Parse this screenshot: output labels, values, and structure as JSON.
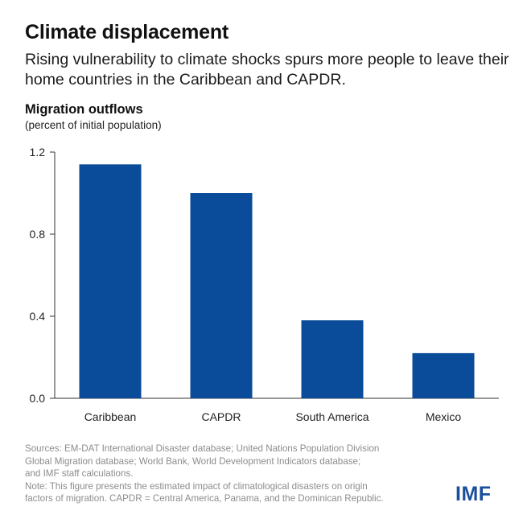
{
  "header": {
    "title": "Climate displacement",
    "subtitle": "Rising vulnerability to climate shocks spurs more people to leave their home countries in the Caribbean and CAPDR."
  },
  "chart_data": {
    "type": "bar",
    "title": "Migration outflows",
    "ylabel": "(percent of initial population)",
    "xlabel": "",
    "categories": [
      "Caribbean",
      "CAPDR",
      "South America",
      "Mexico"
    ],
    "values": [
      1.14,
      1.0,
      0.38,
      0.22
    ],
    "ylim": [
      0,
      1.2
    ],
    "yticks": [
      0.0,
      0.4,
      0.8,
      1.2
    ],
    "ytick_labels": [
      "0.0",
      "0.4",
      "0.8",
      "1.2"
    ],
    "grid": false,
    "bar_color": "#0a4c9a"
  },
  "footer": {
    "source_lines": [
      "Sources: EM-DAT International Disaster database; United Nations Population Division",
      "Global Migration database; World Bank, World Development Indicators database;",
      "and IMF staff calculations.",
      "Note: This figure presents the estimated impact of climatological disasters on origin",
      "factors of migration. CAPDR = Central America, Panama, and the Dominican Republic."
    ],
    "logo_text": "IMF"
  },
  "colors": {
    "bar": "#0a4c9a",
    "logo": "#1b4f9c",
    "source_text": "#8c8c8c"
  }
}
